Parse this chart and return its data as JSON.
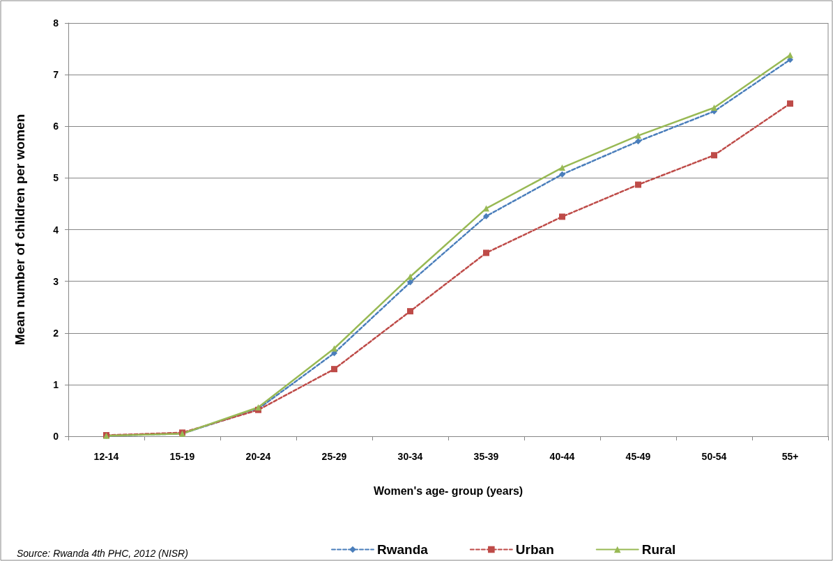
{
  "chart_data": {
    "type": "line",
    "xlabel": "Women's age- group (years)",
    "ylabel": "Mean number of children per women",
    "categories": [
      "12-14",
      "15-19",
      "20-24",
      "25-29",
      "30-34",
      "35-39",
      "40-44",
      "45-49",
      "50-54",
      "55+"
    ],
    "series": [
      {
        "name": "Rwanda",
        "color": "#4a7ebb",
        "marker": "diamond",
        "line_style": "dashed",
        "values": [
          0.01,
          0.05,
          0.53,
          1.61,
          2.98,
          4.26,
          5.07,
          5.71,
          6.29,
          7.29
        ]
      },
      {
        "name": "Urban",
        "color": "#be4b48",
        "marker": "square",
        "line_style": "dashed",
        "values": [
          0.02,
          0.07,
          0.51,
          1.3,
          2.42,
          3.55,
          4.25,
          4.87,
          5.44,
          6.44
        ]
      },
      {
        "name": "Rural",
        "color": "#98b954",
        "marker": "triangle",
        "line_style": "solid",
        "values": [
          0.01,
          0.05,
          0.56,
          1.7,
          3.09,
          4.41,
          5.2,
          5.82,
          6.36,
          7.38
        ]
      }
    ],
    "ylim": [
      0,
      8
    ],
    "yticks": [
      0,
      1,
      2,
      3,
      4,
      5,
      6,
      7,
      8
    ],
    "grid": "y",
    "legend": "bottom",
    "annotations": [
      "Source: Rwanda 4th PHC, 2012 (NISR)"
    ]
  }
}
